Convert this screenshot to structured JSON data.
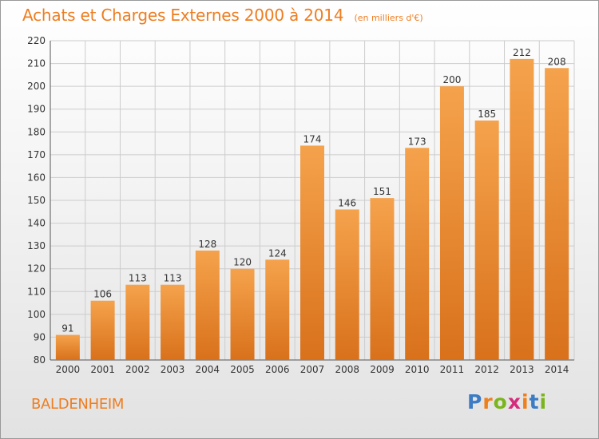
{
  "title": "Achats et Charges Externes 2000 à 2014",
  "subtitle": "(en milliers d'€)",
  "city": "BALDENHEIM",
  "logo": {
    "text": "Proxiti",
    "letter_colors": [
      "#3b7cc4",
      "#ef7f1a",
      "#7ab51d",
      "#d62a7c",
      "#ef7f1a",
      "#3b7cc4",
      "#7ab51d"
    ]
  },
  "colors": {
    "bar_top": "#f5a24c",
    "bar_bottom": "#d9711b",
    "accent": "#ee7d20",
    "grid": "#cccccc",
    "text": "#333333"
  },
  "chart_data": {
    "type": "bar",
    "title": "Achats et Charges Externes 2000 à 2014",
    "subtitle": "(en milliers d'€)",
    "categories": [
      "2000",
      "2001",
      "2002",
      "2003",
      "2004",
      "2005",
      "2006",
      "2007",
      "2008",
      "2009",
      "2010",
      "2011",
      "2012",
      "2013",
      "2014"
    ],
    "values": [
      91,
      106,
      113,
      113,
      128,
      120,
      124,
      174,
      146,
      151,
      173,
      200,
      185,
      212,
      208
    ],
    "ylim": [
      80,
      220
    ],
    "yticks": [
      80,
      90,
      100,
      110,
      120,
      130,
      140,
      150,
      160,
      170,
      180,
      190,
      200,
      210,
      220
    ],
    "xlabel": "",
    "ylabel": "",
    "grid": true,
    "data_labels": true
  }
}
